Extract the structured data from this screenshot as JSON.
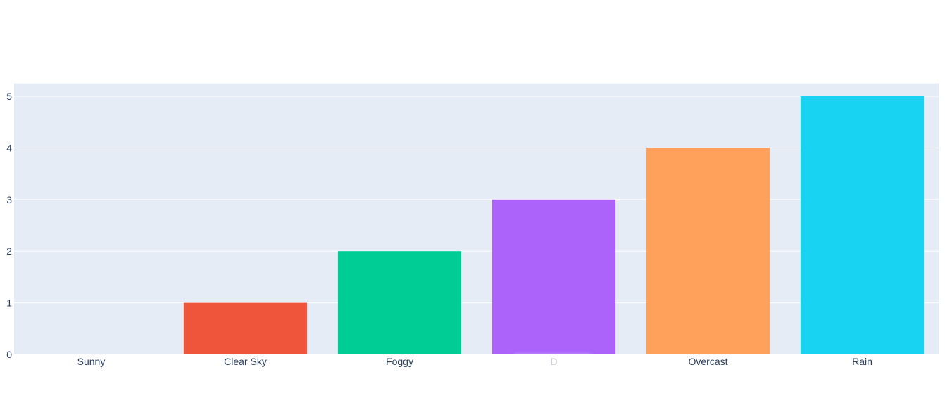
{
  "chart_data": {
    "type": "bar",
    "title": "",
    "xlabel": "",
    "ylabel": "",
    "categories": [
      "Sunny",
      "Clear Sky",
      "Foggy",
      "D",
      "Overcast",
      "Rain"
    ],
    "values": [
      0,
      1,
      2,
      3,
      4,
      5
    ],
    "colors": [
      "#636efa",
      "#EF553B",
      "#00cc96",
      "#ab63fa",
      "#FFA15A",
      "#19d3f3"
    ],
    "ylim": [
      0,
      5.25
    ],
    "yticks": [
      "0",
      "1",
      "2",
      "3",
      "4",
      "5"
    ],
    "grid": true,
    "plot_background": "#E5ECF6",
    "gridline_color": "#ffffff",
    "tick_label_color": "#2a3f5f"
  }
}
